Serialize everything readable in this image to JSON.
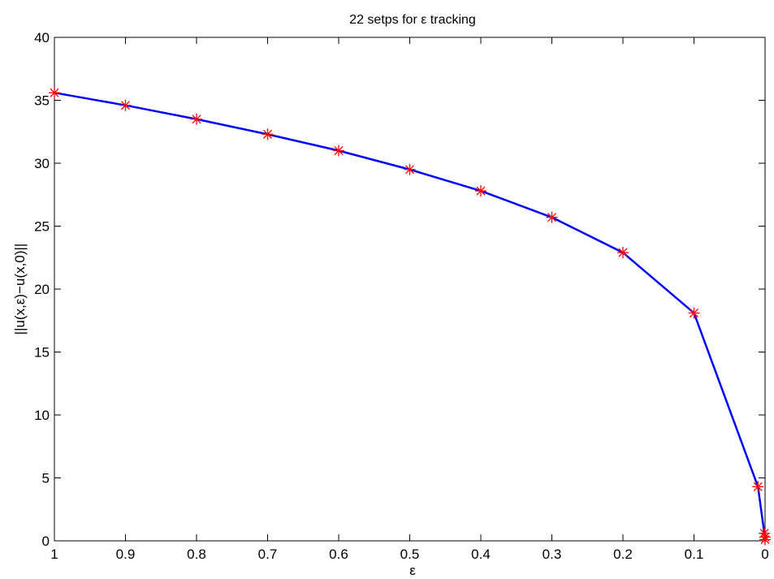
{
  "chart_data": {
    "type": "line",
    "title": "22 setps for ε tracking",
    "xlabel": "ε",
    "ylabel": "||u(x,ε)−u(x,0)||",
    "x_reversed": true,
    "xlim": [
      0,
      1
    ],
    "ylim": [
      0,
      40
    ],
    "xticks": [
      1,
      0.9,
      0.8,
      0.7,
      0.6,
      0.5,
      0.4,
      0.3,
      0.2,
      0.1,
      0
    ],
    "xtick_labels": [
      "1",
      "0.9",
      "0.8",
      "0.7",
      "0.6",
      "0.5",
      "0.4",
      "0.3",
      "0.2",
      "0.1",
      "0"
    ],
    "yticks": [
      0,
      5,
      10,
      15,
      20,
      25,
      30,
      35,
      40
    ],
    "ytick_labels": [
      "0",
      "5",
      "10",
      "15",
      "20",
      "25",
      "30",
      "35",
      "40"
    ],
    "grid": false,
    "series": [
      {
        "line_color": "#0000ff",
        "marker": "asterisk",
        "marker_color": "#ff0000",
        "x": [
          1,
          0.9,
          0.8,
          0.7,
          0.6,
          0.5,
          0.4,
          0.3,
          0.2,
          0.1,
          0.01,
          0.001,
          0.0001,
          1e-05
        ],
        "y": [
          35.6,
          34.6,
          33.5,
          32.3,
          31.0,
          29.5,
          27.8,
          25.7,
          22.9,
          18.1,
          4.3,
          0.6,
          0.3,
          0.1
        ]
      }
    ]
  }
}
